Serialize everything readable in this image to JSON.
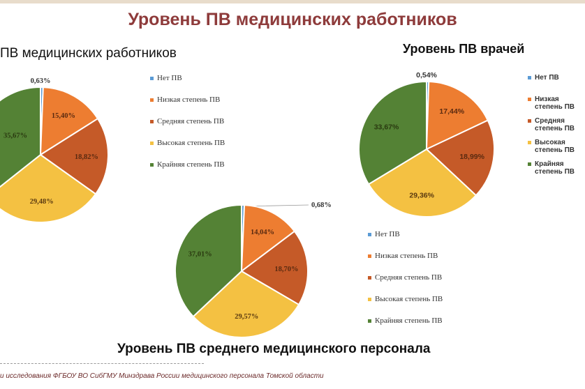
{
  "title": "Уровень ПВ медицинских работников",
  "colors": [
    "#5b9bd5",
    "#ed7d31",
    "#c55a28",
    "#f4c142",
    "#548235"
  ],
  "legend_labels": [
    "Нет ПВ",
    "Низкая степень ПВ",
    "Средняя степень ПВ",
    "Высокая степень ПВ",
    "Крайняя степень ПВ"
  ],
  "footer": "и исследования ФГБОУ ВО СибГМУ Минздрава России медицинского персонала Томской области",
  "chart_data": [
    {
      "type": "pie",
      "title": "ПВ медицинских работников",
      "categories": [
        "Нет ПВ",
        "Низкая степень ПВ",
        "Средняя степень ПВ",
        "Высокая степень ПВ",
        "Крайняя степень ПВ"
      ],
      "values": [
        0.63,
        15.4,
        18.82,
        29.48,
        35.67
      ],
      "labels": [
        "0,63%",
        "15,40%",
        "18,82%",
        "29,48%",
        "35,67%"
      ],
      "legend": "right"
    },
    {
      "type": "pie",
      "title": "Уровень ПВ врачей",
      "categories": [
        "Нет ПВ",
        "Низкая степень ПВ",
        "Средняя степень ПВ",
        "Высокая степень ПВ",
        "Крайняя степень ПВ"
      ],
      "values": [
        0.54,
        17.44,
        18.99,
        29.36,
        33.67
      ],
      "labels": [
        "0,54%",
        "17,44%",
        "18,99%",
        "29,36%",
        "33,67%"
      ],
      "legend": "right"
    },
    {
      "type": "pie",
      "title": "Уровень ПВ среднего медицинского персонала",
      "categories": [
        "Нет ПВ",
        "Низкая степень ПВ",
        "Средняя степень ПВ",
        "Высокая степень ПВ",
        "Крайняя степень ПВ"
      ],
      "values": [
        0.68,
        14.04,
        18.7,
        29.57,
        37.01
      ],
      "labels": [
        "0,68%",
        "14,04%",
        "18,70%",
        "29,57%",
        "37,01%"
      ],
      "legend": "right"
    }
  ]
}
